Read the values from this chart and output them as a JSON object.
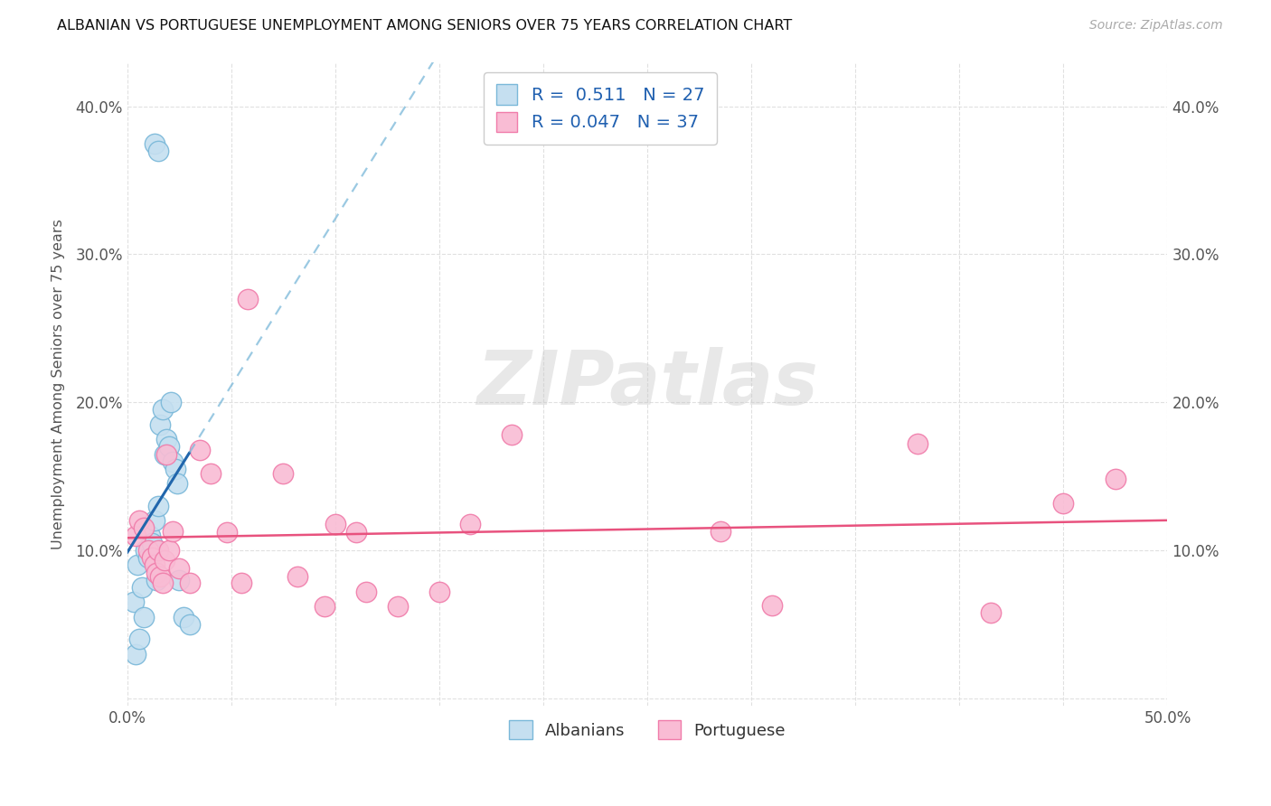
{
  "title": "ALBANIAN VS PORTUGUESE UNEMPLOYMENT AMONG SENIORS OVER 75 YEARS CORRELATION CHART",
  "source": "Source: ZipAtlas.com",
  "ylabel": "Unemployment Among Seniors over 75 years",
  "xlim": [
    0.0,
    0.5
  ],
  "ylim": [
    -0.005,
    0.43
  ],
  "xticks": [
    0.0,
    0.05,
    0.1,
    0.15,
    0.2,
    0.25,
    0.3,
    0.35,
    0.4,
    0.45,
    0.5
  ],
  "yticks": [
    0.0,
    0.1,
    0.2,
    0.3,
    0.4
  ],
  "albanian_color_edge": "#7ab8d9",
  "albanian_color_fill": "#c5dff0",
  "portuguese_color_edge": "#f07caa",
  "portuguese_color_fill": "#f9bcd4",
  "trendline_albanian_solid": "#2166ac",
  "trendline_albanian_dash": "#7ab8d9",
  "trendline_portuguese": "#e8527e",
  "R_albanian": 0.511,
  "N_albanian": 27,
  "R_portuguese": 0.047,
  "N_portuguese": 37,
  "albanian_x": [
    0.003,
    0.004,
    0.005,
    0.006,
    0.007,
    0.008,
    0.009,
    0.01,
    0.011,
    0.012,
    0.013,
    0.014,
    0.015,
    0.016,
    0.017,
    0.018,
    0.019,
    0.02,
    0.021,
    0.022,
    0.023,
    0.024,
    0.025,
    0.027,
    0.03,
    0.013,
    0.015
  ],
  "albanian_y": [
    0.065,
    0.03,
    0.09,
    0.04,
    0.075,
    0.055,
    0.1,
    0.095,
    0.11,
    0.105,
    0.12,
    0.08,
    0.13,
    0.185,
    0.195,
    0.165,
    0.175,
    0.17,
    0.2,
    0.16,
    0.155,
    0.145,
    0.08,
    0.055,
    0.05,
    0.375,
    0.37
  ],
  "portuguese_x": [
    0.004,
    0.006,
    0.008,
    0.01,
    0.012,
    0.013,
    0.014,
    0.015,
    0.016,
    0.017,
    0.018,
    0.019,
    0.02,
    0.022,
    0.025,
    0.03,
    0.035,
    0.04,
    0.048,
    0.055,
    0.058,
    0.075,
    0.082,
    0.095,
    0.1,
    0.11,
    0.115,
    0.13,
    0.15,
    0.165,
    0.185,
    0.285,
    0.31,
    0.38,
    0.415,
    0.45,
    0.475
  ],
  "portuguese_y": [
    0.11,
    0.12,
    0.115,
    0.1,
    0.095,
    0.09,
    0.085,
    0.1,
    0.082,
    0.078,
    0.093,
    0.165,
    0.1,
    0.113,
    0.088,
    0.078,
    0.168,
    0.152,
    0.112,
    0.078,
    0.27,
    0.152,
    0.082,
    0.062,
    0.118,
    0.112,
    0.072,
    0.062,
    0.072,
    0.118,
    0.178,
    0.113,
    0.063,
    0.172,
    0.058,
    0.132,
    0.148
  ],
  "watermark": "ZIPatlas",
  "bg_color": "#ffffff",
  "grid_color": "#e0e0e0"
}
